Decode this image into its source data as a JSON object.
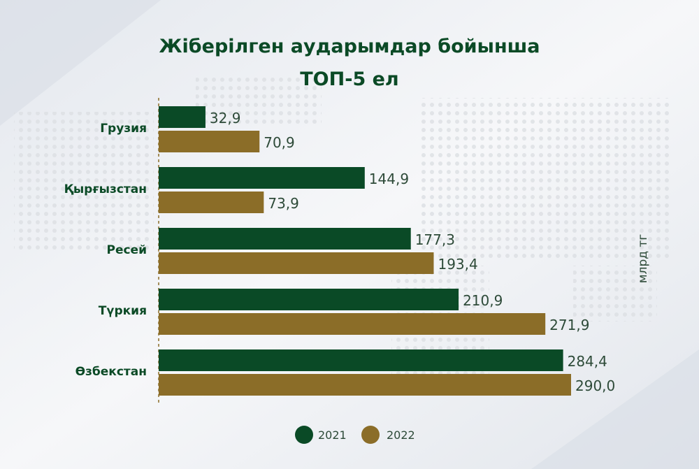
{
  "chart_data": {
    "type": "bar",
    "orientation": "horizontal",
    "title": "Жіберілген аударымдар бойынша ТОП-5 ел",
    "title_lines": [
      "Жіберілген аударымдар бойынша",
      "ТОП-5 ел"
    ],
    "unit_label": "млрд тг",
    "categories": [
      "Грузия",
      "Қырғызстан",
      "Ресей",
      "Түркия",
      "Өзбекстан"
    ],
    "series": [
      {
        "name": "2021",
        "values": [
          32.9,
          144.9,
          177.3,
          210.9,
          284.4
        ],
        "labels": [
          "32,9",
          "144,9",
          "177,3",
          "210,9",
          "284,4"
        ],
        "color": "#0a4a26"
      },
      {
        "name": "2022",
        "values": [
          70.9,
          73.9,
          193.4,
          271.9,
          290.0
        ],
        "labels": [
          "70,9",
          "73,9",
          "193,4",
          "271,9",
          "290,0"
        ],
        "color": "#8b6d28"
      }
    ],
    "xlim": [
      0,
      290
    ],
    "grid": false,
    "legend_position": "bottom"
  }
}
